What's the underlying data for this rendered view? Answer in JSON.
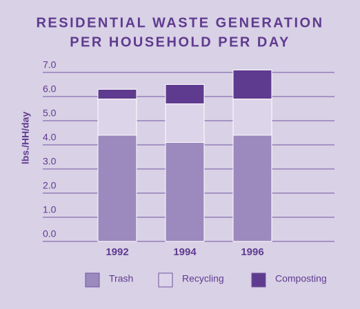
{
  "chart_data": {
    "type": "stacked_bar",
    "title": "RESIDENTIAL WASTE GENERATION",
    "subtitle": "PER HOUSEHOLD PER DAY",
    "y_label": "lbs./HH/day",
    "categories": [
      "1992",
      "1994",
      "1996"
    ],
    "series": [
      {
        "name": "Trash",
        "color": "#9c89be",
        "values": [
          4.4,
          4.1,
          4.4
        ]
      },
      {
        "name": "Recycling",
        "color": "#dcd4e8",
        "values": [
          1.5,
          1.6,
          1.5
        ]
      },
      {
        "name": "Composting",
        "color": "#5f3b8f",
        "values": [
          0.4,
          0.8,
          1.2
        ]
      }
    ],
    "ylim": [
      0,
      7
    ],
    "yticks": [
      {
        "value": 0,
        "label": "0.0"
      },
      {
        "value": 1,
        "label": "1.0"
      },
      {
        "value": 2,
        "label": "2.0"
      },
      {
        "value": 3,
        "label": "3.0"
      },
      {
        "value": 4,
        "label": "4.0"
      },
      {
        "value": 5,
        "label": "5.0"
      },
      {
        "value": 6,
        "label": "6.0"
      },
      {
        "value": 7,
        "label": "7.0"
      }
    ],
    "grid": true
  }
}
